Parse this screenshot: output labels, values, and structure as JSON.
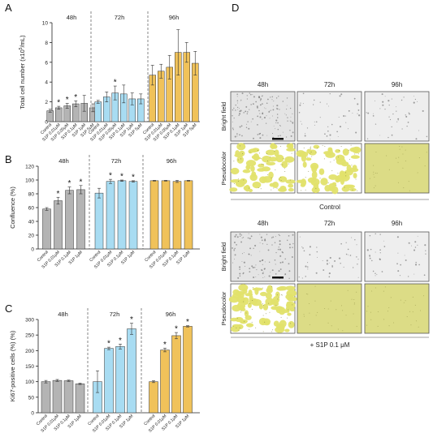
{
  "colors": {
    "gray": "#b4b4b4",
    "blue": "#a8dcf2",
    "orange": "#f0c25a",
    "pseudo_dense": "#e2e16b",
    "pseudo_light": "#dcdc86",
    "axis": "#222222",
    "divider": "#6a6a6a"
  },
  "panel_labels": [
    "A",
    "B",
    "C",
    "D"
  ],
  "chart_data": [
    {
      "type": "bar",
      "panel": "A",
      "ylabel": "Total cell number (x10",
      "ylabel_sup": "5",
      "ylabel_tail": "/mL)",
      "ylim": [
        0,
        10
      ],
      "yticks": [
        "0",
        "2",
        "4",
        "6",
        "8",
        "10"
      ],
      "tick_values": [
        0,
        2,
        4,
        6,
        8,
        10
      ],
      "groups": [
        {
          "name": "48h",
          "color": "gray",
          "categories": [
            "Control",
            "S1P 0.01μM",
            "S1P 0.05μM",
            "S1P 0.1μM",
            "S1P 1μM",
            "S1P 5μM"
          ],
          "values": [
            1.1,
            1.4,
            1.6,
            1.8,
            1.85,
            1.4
          ],
          "errors": [
            0.15,
            0.15,
            0.25,
            0.3,
            0.8,
            0.4
          ],
          "stars": [
            false,
            true,
            true,
            true,
            false,
            false
          ]
        },
        {
          "name": "72h",
          "color": "blue",
          "categories": [
            "Control",
            "S1P 0.01μM",
            "S1P 0.05μM",
            "S1P 0.1μM",
            "S1P 1μM",
            "S1P 5μM"
          ],
          "values": [
            2.0,
            2.5,
            2.9,
            2.8,
            2.3,
            2.3
          ],
          "errors": [
            0.15,
            0.5,
            0.7,
            0.9,
            0.6,
            0.5
          ],
          "stars": [
            false,
            false,
            true,
            false,
            false,
            false
          ]
        },
        {
          "name": "96h",
          "color": "orange",
          "categories": [
            "Control",
            "S1P 0.01μM",
            "S1P 0.05μM",
            "S1P 0.1μM",
            "S1P 1μM",
            "S1P 5μM"
          ],
          "values": [
            4.7,
            5.1,
            5.5,
            7.0,
            7.0,
            5.9
          ],
          "errors": [
            1.0,
            0.7,
            1.2,
            2.3,
            1.0,
            1.2
          ],
          "stars": [
            false,
            false,
            false,
            false,
            false,
            false
          ]
        }
      ]
    },
    {
      "type": "bar",
      "panel": "B",
      "ylabel": "Confluence (%)",
      "ylim": [
        0,
        120
      ],
      "yticks": [
        "0",
        "20",
        "40",
        "60",
        "80",
        "100",
        "120"
      ],
      "tick_values": [
        0,
        20,
        40,
        60,
        80,
        100,
        120
      ],
      "groups": [
        {
          "name": "48h",
          "color": "gray",
          "categories": [
            "Control",
            "S1P 0.01μM",
            "S1P 0.1μM",
            "S1P 1μM"
          ],
          "values": [
            58,
            70,
            85,
            86
          ],
          "errors": [
            2,
            5,
            5,
            6
          ],
          "stars": [
            false,
            true,
            true,
            true
          ]
        },
        {
          "name": "72h",
          "color": "blue",
          "categories": [
            "Control",
            "S1P 0.01μM",
            "S1P 0.1μM",
            "S1P 1μM"
          ],
          "values": [
            81,
            98,
            99,
            98
          ],
          "errors": [
            7,
            3,
            1,
            1
          ],
          "stars": [
            false,
            true,
            true,
            true
          ]
        },
        {
          "name": "96h",
          "color": "orange",
          "categories": [
            "Control",
            "S1P 0.01μM",
            "S1P 0.1μM",
            "S1P 1μM"
          ],
          "values": [
            99,
            99,
            98,
            99
          ],
          "errors": [
            0.5,
            0.5,
            1.5,
            0.5
          ],
          "stars": [
            false,
            false,
            false,
            false
          ]
        }
      ]
    },
    {
      "type": "bar",
      "panel": "C",
      "ylabel": "Ki67-positive cells (%) (%)",
      "ylim": [
        0,
        300
      ],
      "yticks": [
        "0",
        "50",
        "100",
        "150",
        "200",
        "250",
        "300"
      ],
      "tick_values": [
        0,
        50,
        100,
        150,
        200,
        250,
        300
      ],
      "groups": [
        {
          "name": "48h",
          "color": "gray",
          "categories": [
            "Control",
            "S1P 0.01μM",
            "S1P 0.1μM",
            "S1P 1μM"
          ],
          "values": [
            100,
            104,
            103,
            93
          ],
          "errors": [
            4,
            3,
            2,
            2
          ],
          "stars": [
            false,
            false,
            false,
            false
          ]
        },
        {
          "name": "72h",
          "color": "blue",
          "categories": [
            "Control",
            "S1P 0.01μM",
            "S1P 0.1μM",
            "S1P 1μM"
          ],
          "values": [
            100,
            207,
            213,
            270
          ],
          "errors": [
            35,
            4,
            8,
            18
          ],
          "stars": [
            false,
            true,
            true,
            true
          ]
        },
        {
          "name": "96h",
          "color": "orange",
          "categories": [
            "Control",
            "S1P 0.01μM",
            "S1P 0.1μM",
            "S1P 1μM"
          ],
          "values": [
            100,
            202,
            248,
            278
          ],
          "errors": [
            3,
            6,
            10,
            2
          ],
          "stars": [
            false,
            true,
            true,
            true
          ]
        }
      ]
    }
  ],
  "panel_d": {
    "time_labels": [
      "48h",
      "72h",
      "96h"
    ],
    "row_labels": [
      "Bright field",
      "Pseudocolor"
    ],
    "blocks": [
      {
        "caption": "Control",
        "pseudo": [
          "patchy",
          "patchy",
          "full"
        ]
      },
      {
        "caption": "+ S1P 0.1 μM",
        "pseudo": [
          "patchy-dense",
          "full",
          "full"
        ]
      }
    ]
  }
}
